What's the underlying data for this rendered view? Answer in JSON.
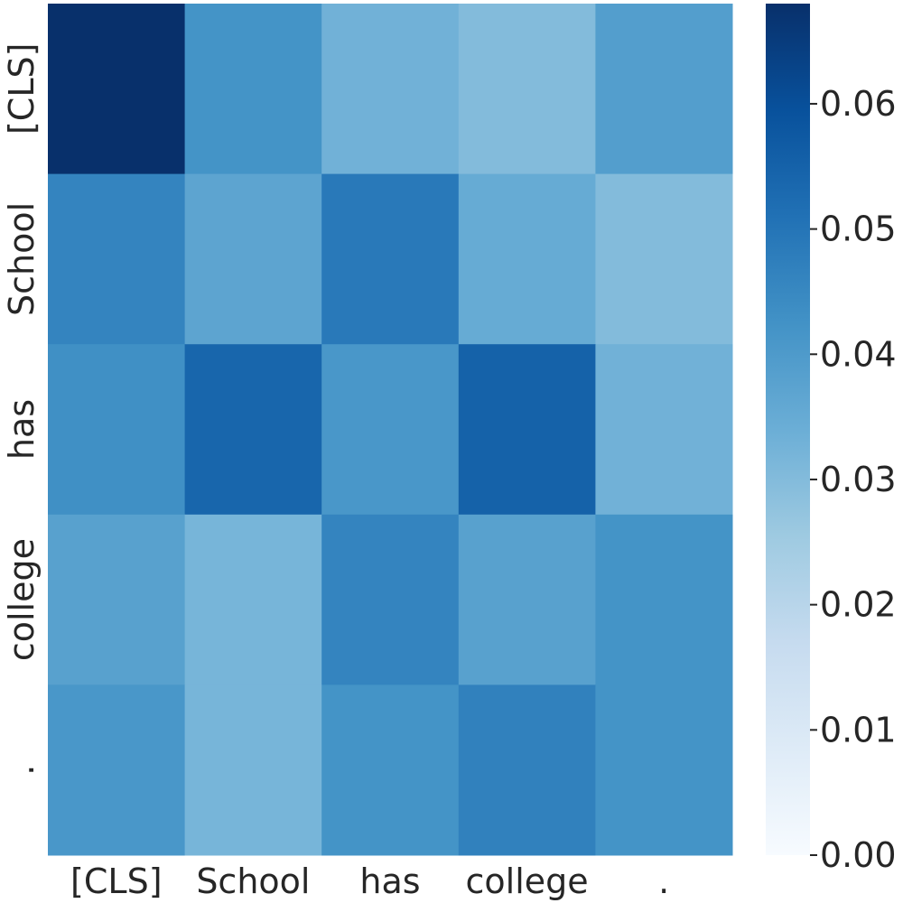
{
  "chart_data": {
    "type": "heatmap",
    "title": "",
    "xlabel": "",
    "ylabel": "",
    "x_labels": [
      "[CLS]",
      "School",
      "has",
      "college",
      "."
    ],
    "y_labels": [
      "[CLS]",
      "School",
      "has",
      "college",
      "."
    ],
    "values": [
      [
        0.068,
        0.042,
        0.033,
        0.03,
        0.039
      ],
      [
        0.046,
        0.037,
        0.049,
        0.035,
        0.03
      ],
      [
        0.043,
        0.054,
        0.041,
        0.055,
        0.033
      ],
      [
        0.038,
        0.032,
        0.046,
        0.038,
        0.042
      ],
      [
        0.041,
        0.032,
        0.042,
        0.047,
        0.042
      ]
    ],
    "colormap": "Blues",
    "colorbar": {
      "vmin": 0.0,
      "vmax": 0.068,
      "ticks": [
        0.0,
        0.01,
        0.02,
        0.03,
        0.04,
        0.05,
        0.06
      ],
      "tick_labels": [
        "0.00",
        "0.01",
        "0.02",
        "0.03",
        "0.04",
        "0.05",
        "0.06"
      ]
    },
    "grid": false,
    "legend": "colorbar-right"
  }
}
